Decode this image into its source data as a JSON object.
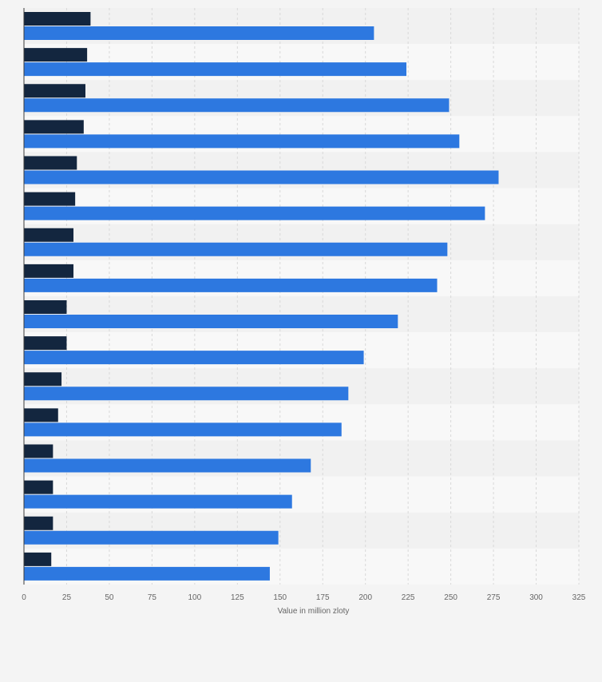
{
  "chart_data": {
    "type": "bar",
    "orientation": "horizontal",
    "categories": [
      "",
      "",
      "",
      "",
      "",
      "",
      "",
      "",
      "",
      "",
      "",
      "",
      "",
      "",
      "",
      ""
    ],
    "series": [
      {
        "values": [
          39,
          37,
          36,
          35,
          31,
          30,
          29,
          29,
          25,
          25,
          22,
          20,
          17,
          17,
          17,
          16
        ],
        "color": "#13263f"
      },
      {
        "values": [
          205,
          224,
          249,
          255,
          278,
          270,
          248,
          242,
          219,
          199,
          190,
          186,
          168,
          157,
          149,
          144
        ],
        "color": "#2d78e0"
      }
    ],
    "xlabel": "Value in million zloty",
    "ylabel": "",
    "xlim": [
      0,
      325
    ],
    "xticks": [
      "0",
      "25",
      "50",
      "75",
      "100",
      "125",
      "150",
      "175",
      "200",
      "225",
      "250",
      "275",
      "300",
      "325"
    ],
    "grid": true
  }
}
